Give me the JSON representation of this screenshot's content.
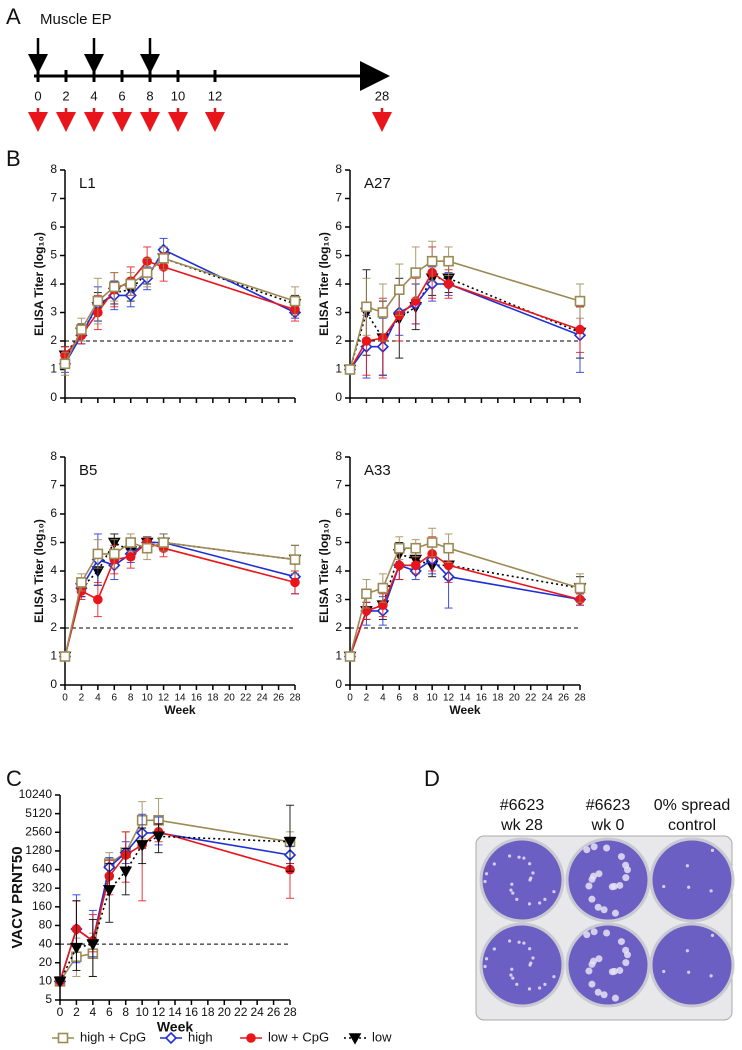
{
  "panel_labels": [
    "A",
    "B",
    "C",
    "D"
  ],
  "timeline": {
    "label": "Muscle EP",
    "weeks": [
      0,
      2,
      4,
      6,
      8,
      10,
      12,
      28
    ],
    "ep_weeks": [
      0,
      4,
      8
    ]
  },
  "chart_data": [
    {
      "type": "line",
      "title": "L1",
      "ylabel": "ELISA Titer (log₁₀)",
      "x": [
        0,
        2,
        4,
        6,
        8,
        10,
        12,
        28
      ],
      "xlim": [
        0,
        28
      ],
      "xticks": [
        0,
        2,
        4,
        6,
        8,
        10,
        12,
        14,
        16,
        18,
        20,
        22,
        24,
        26,
        28
      ],
      "ylim": [
        0,
        8
      ],
      "yticks": [
        0,
        1,
        2,
        3,
        4,
        5,
        6,
        7,
        8
      ],
      "threshold": 2,
      "series": [
        {
          "name": "low",
          "color": "#000000",
          "marker": "triangle-down",
          "filled": true,
          "dash": "dotted",
          "values": [
            1.5,
            2.3,
            3.2,
            3.7,
            3.8,
            4.4,
            4.9,
            3.3
          ],
          "errors": [
            0.3,
            0.3,
            0.5,
            0.4,
            0.4,
            0.4,
            0.4,
            0.3
          ]
        },
        {
          "name": "high",
          "color": "#1f2fd6",
          "marker": "diamond",
          "filled": false,
          "dash": "solid",
          "values": [
            1.2,
            2.2,
            3.3,
            3.6,
            3.6,
            4.2,
            5.2,
            3.0
          ],
          "errors": [
            0.3,
            0.3,
            0.6,
            0.5,
            0.4,
            0.4,
            0.4,
            0.2
          ]
        },
        {
          "name": "low + CpG",
          "color": "#e8151b",
          "marker": "circle",
          "filled": true,
          "dash": "solid",
          "values": [
            1.5,
            2.2,
            3.0,
            3.8,
            4.1,
            4.8,
            4.6,
            3.1
          ],
          "errors": [
            0.3,
            0.3,
            0.6,
            0.6,
            0.5,
            0.5,
            0.5,
            0.4
          ]
        },
        {
          "name": "high + CpG",
          "color": "#9c8a55",
          "marker": "square",
          "filled": false,
          "dash": "solid",
          "values": [
            1.2,
            2.4,
            3.4,
            3.9,
            4.0,
            4.4,
            4.9,
            3.4
          ],
          "errors": [
            0.4,
            0.4,
            0.8,
            0.5,
            0.4,
            0.5,
            0.4,
            0.5
          ]
        }
      ]
    },
    {
      "type": "line",
      "title": "A27",
      "ylabel": "ELISA Titer (log₁₀)",
      "x": [
        0,
        2,
        4,
        6,
        8,
        10,
        12,
        28
      ],
      "xlim": [
        0,
        28
      ],
      "xticks": [
        0,
        2,
        4,
        6,
        8,
        10,
        12,
        14,
        16,
        18,
        20,
        22,
        24,
        26,
        28
      ],
      "ylim": [
        0,
        8
      ],
      "yticks": [
        0,
        1,
        2,
        3,
        4,
        5,
        6,
        7,
        8
      ],
      "threshold": 2,
      "series": [
        {
          "name": "low",
          "color": "#000000",
          "marker": "triangle-down",
          "filled": true,
          "dash": "dotted",
          "values": [
            1.0,
            3.0,
            2.1,
            2.8,
            3.2,
            4.2,
            4.2,
            2.3
          ],
          "errors": [
            0,
            1.5,
            1.3,
            1.4,
            0.8,
            0.6,
            0.5,
            0.9
          ]
        },
        {
          "name": "high",
          "color": "#1f2fd6",
          "marker": "diamond",
          "filled": false,
          "dash": "solid",
          "values": [
            1.0,
            1.8,
            1.8,
            3.0,
            3.3,
            4.0,
            4.0,
            2.2
          ],
          "errors": [
            0,
            1.1,
            1.0,
            0.8,
            0.7,
            0.6,
            0.4,
            1.3
          ]
        },
        {
          "name": "low + CpG",
          "color": "#e8151b",
          "marker": "circle",
          "filled": true,
          "dash": "solid",
          "values": [
            1.0,
            2.0,
            2.1,
            2.9,
            3.4,
            4.4,
            4.0,
            2.4
          ],
          "errors": [
            0,
            1.2,
            1.4,
            0.9,
            0.8,
            0.9,
            0.5,
            0.8
          ]
        },
        {
          "name": "high + CpG",
          "color": "#9c8a55",
          "marker": "square",
          "filled": false,
          "dash": "solid",
          "values": [
            1.0,
            3.2,
            3.0,
            3.8,
            4.4,
            4.8,
            4.8,
            3.4
          ],
          "errors": [
            0,
            1.0,
            1.0,
            0.9,
            0.9,
            0.7,
            0.5,
            0.6
          ]
        }
      ]
    },
    {
      "type": "line",
      "title": "B5",
      "ylabel": "ELISA Titer (log₁₀)",
      "xlabel": "Week",
      "legend": "bottom",
      "x": [
        0,
        2,
        4,
        6,
        8,
        10,
        12,
        28
      ],
      "xlim": [
        0,
        28
      ],
      "xticks": [
        0,
        2,
        4,
        6,
        8,
        10,
        12,
        14,
        16,
        18,
        20,
        22,
        24,
        26,
        28
      ],
      "ylim": [
        0,
        8
      ],
      "yticks": [
        0,
        1,
        2,
        3,
        4,
        5,
        6,
        7,
        8
      ],
      "threshold": 2,
      "series": [
        {
          "name": "low",
          "color": "#000000",
          "marker": "triangle-down",
          "filled": true,
          "dash": "dotted",
          "values": [
            1.0,
            3.4,
            4.0,
            5.0,
            4.7,
            5.0,
            5.0,
            4.4
          ],
          "errors": [
            0,
            0.3,
            0.5,
            0.3,
            0.3,
            0.2,
            0.3,
            0.5
          ]
        },
        {
          "name": "high",
          "color": "#1f2fd6",
          "marker": "diamond",
          "filled": false,
          "dash": "solid",
          "values": [
            1.0,
            3.4,
            4.4,
            4.2,
            4.6,
            5.0,
            5.0,
            3.8
          ],
          "errors": [
            0,
            0.3,
            0.9,
            0.5,
            0.3,
            0.2,
            0.3,
            0.6
          ]
        },
        {
          "name": "low + CpG",
          "color": "#e8151b",
          "marker": "circle",
          "filled": true,
          "dash": "solid",
          "values": [
            1.0,
            3.3,
            3.0,
            4.4,
            4.5,
            5.0,
            4.8,
            3.6
          ],
          "errors": [
            0,
            0.3,
            0.6,
            0.5,
            0.4,
            0.2,
            0.3,
            0.4
          ]
        },
        {
          "name": "high + CpG",
          "color": "#9c8a55",
          "marker": "square",
          "filled": false,
          "dash": "solid",
          "values": [
            1.0,
            3.6,
            4.6,
            4.6,
            5.0,
            4.8,
            5.0,
            4.4
          ],
          "errors": [
            0,
            0.3,
            0.5,
            0.5,
            0.3,
            0.4,
            0.3,
            0.5
          ]
        }
      ]
    },
    {
      "type": "line",
      "title": "A33",
      "ylabel": "ELISA Titer (log₁₀)",
      "xlabel": "Week",
      "x": [
        0,
        2,
        4,
        6,
        8,
        10,
        12,
        28
      ],
      "xlim": [
        0,
        28
      ],
      "xticks": [
        0,
        2,
        4,
        6,
        8,
        10,
        12,
        14,
        16,
        18,
        20,
        22,
        24,
        26,
        28
      ],
      "ylim": [
        0,
        8
      ],
      "yticks": [
        0,
        1,
        2,
        3,
        4,
        5,
        6,
        7,
        8
      ],
      "threshold": 2,
      "series": [
        {
          "name": "low",
          "color": "#000000",
          "marker": "triangle-down",
          "filled": true,
          "dash": "dotted",
          "values": [
            1.0,
            2.6,
            2.8,
            4.6,
            4.4,
            4.2,
            4.2,
            3.4
          ],
          "errors": [
            0,
            0.3,
            0.5,
            0.4,
            0.3,
            0.4,
            0.5,
            0.4
          ]
        },
        {
          "name": "high",
          "color": "#1f2fd6",
          "marker": "diamond",
          "filled": false,
          "dash": "solid",
          "values": [
            1.0,
            2.6,
            2.6,
            4.2,
            4.0,
            4.4,
            3.8,
            3.0
          ],
          "errors": [
            0,
            0.5,
            0.5,
            0.5,
            0.3,
            0.5,
            1.1,
            0.2
          ]
        },
        {
          "name": "low + CpG",
          "color": "#e8151b",
          "marker": "circle",
          "filled": true,
          "dash": "solid",
          "values": [
            1.0,
            2.6,
            2.8,
            4.2,
            4.2,
            4.6,
            4.2,
            3.0
          ],
          "errors": [
            0,
            0.3,
            0.4,
            0.5,
            0.3,
            0.6,
            0.6,
            0.2
          ]
        },
        {
          "name": "high + CpG",
          "color": "#9c8a55",
          "marker": "square",
          "filled": false,
          "dash": "solid",
          "values": [
            1.0,
            3.2,
            3.4,
            4.8,
            4.8,
            5.0,
            4.8,
            3.4
          ],
          "errors": [
            0,
            0.5,
            0.5,
            0.4,
            0.3,
            0.5,
            0.5,
            0.5
          ]
        }
      ]
    },
    {
      "type": "line",
      "ylabel": "VACV PRNT50",
      "xlabel": "Week",
      "legend": "bottom",
      "log_scale": true,
      "x": [
        0,
        2,
        4,
        6,
        8,
        10,
        12,
        28
      ],
      "xlim": [
        0,
        28
      ],
      "xticks": [
        0,
        2,
        4,
        6,
        8,
        10,
        12,
        14,
        16,
        18,
        20,
        22,
        24,
        26,
        28
      ],
      "ylim": [
        5,
        10240
      ],
      "yticks": [
        5,
        10,
        20,
        40,
        80,
        160,
        320,
        640,
        1280,
        2560,
        5120,
        10240
      ],
      "threshold": 40,
      "series": [
        {
          "name": "high + CpG",
          "color": "#9c8a55",
          "marker": "square",
          "filled": false,
          "dash": "solid",
          "values": [
            10,
            25,
            28,
            800,
            1200,
            4000,
            4000,
            1800
          ],
          "lower": [
            10,
            12,
            12,
            500,
            700,
            2000,
            2500,
            1200
          ],
          "upper": [
            10,
            50,
            60,
            1200,
            2600,
            8000,
            9000,
            2600
          ]
        },
        {
          "name": "high",
          "color": "#1f2fd6",
          "marker": "diamond",
          "filled": false,
          "dash": "solid",
          "values": [
            10,
            70,
            45,
            700,
            1200,
            2500,
            2500,
            1100
          ],
          "lower": [
            10,
            20,
            25,
            500,
            800,
            1400,
            1600,
            800
          ],
          "upper": [
            10,
            250,
            140,
            1000,
            1800,
            5000,
            4500,
            1500
          ]
        },
        {
          "name": "low + CpG",
          "color": "#e8151b",
          "marker": "circle",
          "filled": true,
          "dash": "solid",
          "values": [
            10,
            70,
            45,
            500,
            1100,
            1600,
            2600,
            640
          ],
          "lower": [
            10,
            40,
            30,
            250,
            400,
            200,
            1800,
            220
          ],
          "upper": [
            10,
            200,
            120,
            900,
            2600,
            3000,
            3500,
            800
          ]
        },
        {
          "name": "low",
          "color": "#000000",
          "marker": "triangle-down",
          "filled": true,
          "dash": "dotted",
          "values": [
            10,
            35,
            40,
            300,
            600,
            1600,
            2200,
            1800
          ],
          "lower": [
            10,
            15,
            12,
            90,
            250,
            800,
            1200,
            600
          ],
          "upper": [
            10,
            200,
            100,
            800,
            1400,
            3000,
            3500,
            7000
          ]
        }
      ]
    }
  ],
  "plate": {
    "labels": [
      [
        "#6623",
        "wk 28"
      ],
      [
        "#6623",
        "wk 0"
      ],
      [
        "0% spread",
        "control"
      ]
    ]
  }
}
